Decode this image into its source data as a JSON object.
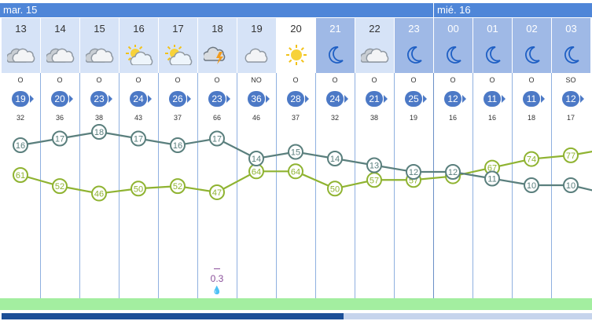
{
  "days": [
    {
      "label": "mar. 15"
    },
    {
      "label": "mié. 16"
    }
  ],
  "colors": {
    "day_header_bg": "#4f86d8",
    "day_cell_bg": "#d6e3f7",
    "night_cell_bg": "#9fb9e6",
    "temp_line": "#5a7f7d",
    "humidity_line": "#8fb331",
    "wind_badge": "#4c79c6",
    "precip_strip": "#a3eea0",
    "precip_text": "#8a4f9a"
  },
  "hours": [
    {
      "hour": "13",
      "icon": "cloudy-icon",
      "wind_dir": "O",
      "wind": "19",
      "gust": "32",
      "temp": 16,
      "humidity": 61
    },
    {
      "hour": "14",
      "icon": "cloudy-icon",
      "wind_dir": "O",
      "wind": "20",
      "gust": "36",
      "temp": 17,
      "humidity": 52
    },
    {
      "hour": "15",
      "icon": "cloudy-icon",
      "wind_dir": "O",
      "wind": "23",
      "gust": "38",
      "temp": 18,
      "humidity": 46
    },
    {
      "hour": "16",
      "icon": "sun-cloud-icon",
      "wind_dir": "O",
      "wind": "24",
      "gust": "43",
      "temp": 17,
      "humidity": 50
    },
    {
      "hour": "17",
      "icon": "sun-cloud-icon",
      "wind_dir": "O",
      "wind": "26",
      "gust": "37",
      "temp": 16,
      "humidity": 52
    },
    {
      "hour": "18",
      "icon": "storm-icon",
      "wind_dir": "O",
      "wind": "23",
      "gust": "66",
      "temp": 17,
      "humidity": 47,
      "precip": "0.3"
    },
    {
      "hour": "19",
      "icon": "cloud-icon",
      "wind_dir": "NO",
      "wind": "36",
      "gust": "46",
      "temp": 14,
      "humidity": 64
    },
    {
      "hour": "20",
      "icon": "sun-icon",
      "wind_dir": "O",
      "wind": "28",
      "gust": "37",
      "temp": 15,
      "humidity": 64
    },
    {
      "hour": "21",
      "icon": "moon-icon",
      "wind_dir": "O",
      "wind": "24",
      "gust": "32",
      "temp": 14,
      "humidity": 50
    },
    {
      "hour": "22",
      "icon": "cloudy-icon",
      "wind_dir": "O",
      "wind": "21",
      "gust": "38",
      "temp": 13,
      "humidity": 57
    },
    {
      "hour": "23",
      "icon": "moon-icon",
      "wind_dir": "O",
      "wind": "25",
      "gust": "19",
      "temp": 12,
      "humidity": 57
    },
    {
      "hour": "00",
      "icon": "moon-icon",
      "wind_dir": "O",
      "wind": "12",
      "gust": "16",
      "temp": 12,
      "humidity": 60
    },
    {
      "hour": "01",
      "icon": "moon-icon",
      "wind_dir": "O",
      "wind": "11",
      "gust": "16",
      "temp": 11,
      "humidity": 67
    },
    {
      "hour": "02",
      "icon": "moon-icon",
      "wind_dir": "O",
      "wind": "11",
      "gust": "18",
      "temp": 10,
      "humidity": 74
    },
    {
      "hour": "03",
      "icon": "moon-icon",
      "wind_dir": "SO",
      "wind": "12",
      "gust": "17",
      "temp": 10,
      "humidity": 77
    }
  ]
}
